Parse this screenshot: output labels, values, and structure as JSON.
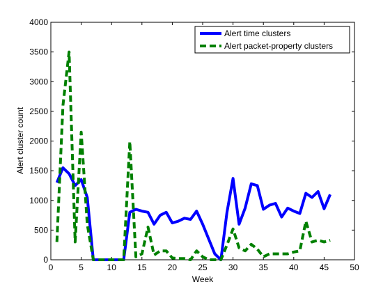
{
  "chart_data": {
    "type": "line",
    "xlabel": "Week",
    "ylabel": "Alert cluster count",
    "xlim": [
      0,
      50
    ],
    "ylim": [
      0,
      4000
    ],
    "xticks": [
      0,
      5,
      10,
      15,
      20,
      25,
      30,
      35,
      40,
      45,
      50
    ],
    "yticks": [
      0,
      500,
      1000,
      1500,
      2000,
      2500,
      3000,
      3500,
      4000
    ],
    "grid": false,
    "legend_position": "top-right",
    "series": [
      {
        "name": "Alert time clusters",
        "color": "#0000ff",
        "style": "solid",
        "x": [
          1,
          2,
          3,
          4,
          5,
          6,
          7,
          8,
          9,
          10,
          11,
          12,
          13,
          14,
          15,
          16,
          17,
          18,
          19,
          20,
          21,
          22,
          23,
          24,
          25,
          26,
          27,
          28,
          29,
          30,
          31,
          32,
          33,
          34,
          35,
          36,
          37,
          38,
          39,
          40,
          41,
          42,
          43,
          44,
          45,
          46
        ],
        "y": [
          1300,
          1550,
          1450,
          1250,
          1350,
          1050,
          0,
          0,
          0,
          0,
          0,
          0,
          800,
          850,
          820,
          800,
          600,
          750,
          800,
          620,
          650,
          700,
          680,
          820,
          600,
          350,
          100,
          0,
          800,
          1370,
          600,
          870,
          1280,
          1250,
          850,
          920,
          950,
          720,
          870,
          820,
          780,
          1120,
          1050,
          1150,
          860,
          1100
        ]
      },
      {
        "name": "Alert packet-property clusters",
        "color": "#008000",
        "style": "dashed",
        "x": [
          1,
          2,
          3,
          4,
          5,
          6,
          7,
          8,
          9,
          10,
          11,
          12,
          13,
          14,
          15,
          16,
          17,
          18,
          19,
          20,
          21,
          22,
          23,
          24,
          25,
          26,
          27,
          28,
          29,
          30,
          31,
          32,
          33,
          34,
          35,
          36,
          37,
          38,
          39,
          40,
          41,
          42,
          43,
          44,
          45,
          46
        ],
        "y": [
          300,
          2600,
          3500,
          300,
          2150,
          600,
          0,
          0,
          0,
          0,
          0,
          0,
          1990,
          50,
          100,
          550,
          80,
          150,
          150,
          30,
          20,
          20,
          0,
          150,
          50,
          0,
          0,
          0,
          250,
          520,
          200,
          150,
          260,
          180,
          50,
          100,
          100,
          100,
          100,
          130,
          150,
          650,
          300,
          330,
          300,
          330
        ]
      }
    ]
  }
}
